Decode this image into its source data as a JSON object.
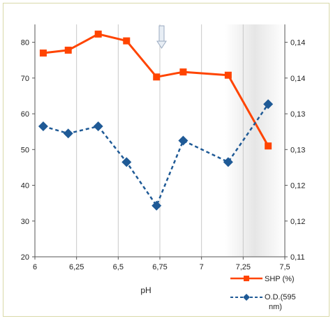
{
  "chart_data": {
    "type": "line",
    "xlabel": "pH",
    "xlim": [
      6,
      7.5
    ],
    "x_ticks": [
      "6",
      "6,25",
      "6,5",
      "6,75",
      "7",
      "7,25",
      "7,5"
    ],
    "ylim_left": [
      20,
      85
    ],
    "y_ticks_left": [
      "20",
      "30",
      "40",
      "50",
      "60",
      "70",
      "80"
    ],
    "ylim_right": [
      0.11,
      0.145
    ],
    "y_ticks_right": [
      "0,11",
      "0,12",
      "0,12",
      "0,13",
      "0,13",
      "0,14",
      "0,14"
    ],
    "grid": "vertical",
    "legend_position": "bottom-right",
    "series": [
      {
        "name": "SHP (%)",
        "axis": "left",
        "color": "#ff4400",
        "marker": "square",
        "line_style": "solid",
        "x": [
          6.05,
          6.2,
          6.38,
          6.55,
          6.73,
          6.89,
          7.16,
          7.4
        ],
        "y": [
          77,
          77.8,
          82.3,
          80.4,
          70.3,
          71.7,
          70.8,
          51
        ]
      },
      {
        "name": "O.D.(595 nm)",
        "axis": "left",
        "color": "#1f5a96",
        "marker": "diamond",
        "line_style": "dashed",
        "x": [
          6.05,
          6.2,
          6.38,
          6.55,
          6.73,
          6.89,
          7.16,
          7.4
        ],
        "y": [
          56.5,
          54.5,
          56.5,
          46.5,
          34.3,
          52.5,
          46.5,
          62.7
        ]
      }
    ]
  },
  "legend": {
    "shp_label": "SHP (%)",
    "od_label_line1": "O.D.(595",
    "od_label_line2": "nm)"
  }
}
